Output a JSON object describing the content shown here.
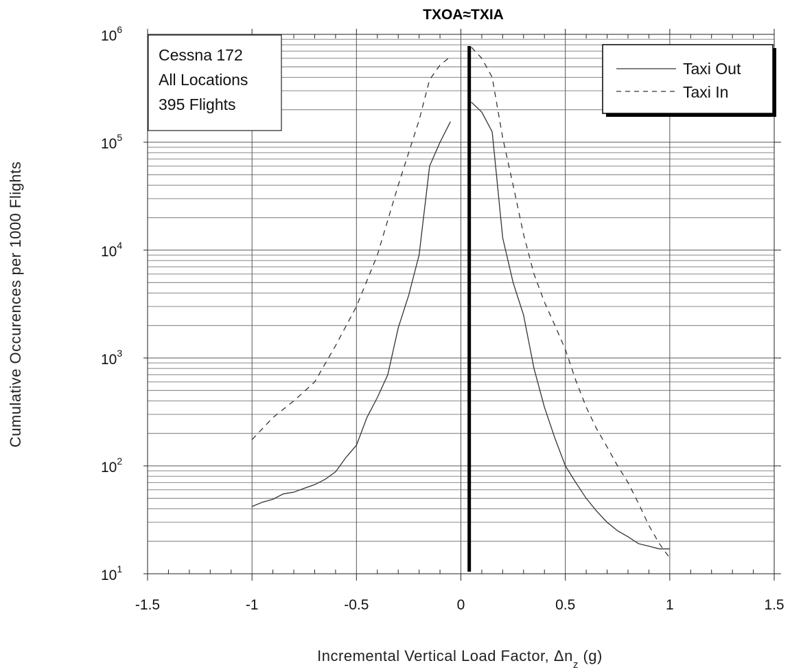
{
  "chart_data": {
    "type": "line",
    "title": "TXOA≈TXIA",
    "xlabel": "Incremental Vertical Load Factor, Δn",
    "xlabel_subscript": "z",
    "xlabel_suffix": " (g)",
    "ylabel": "Cumulative Occurences per 1000 Flights",
    "xlim": [
      -1.5,
      1.5
    ],
    "ylim": [
      10,
      1000000
    ],
    "yscale": "log",
    "grid": true,
    "x_ticks": [
      "-1.5",
      "-1",
      "-0.5",
      "0",
      "0.5",
      "1",
      "1.5"
    ],
    "x_tick_values": [
      -1.5,
      -1,
      -0.5,
      0,
      0.5,
      1,
      1.5
    ],
    "y_ticks": [
      {
        "base": "10",
        "exp": "1",
        "value": 10
      },
      {
        "base": "10",
        "exp": "2",
        "value": 100
      },
      {
        "base": "10",
        "exp": "3",
        "value": 1000
      },
      {
        "base": "10",
        "exp": "4",
        "value": 10000
      },
      {
        "base": "10",
        "exp": "5",
        "value": 100000
      },
      {
        "base": "10",
        "exp": "6",
        "value": 1000000
      }
    ],
    "info_box": [
      "Cessna 172",
      "All Locations",
      "395 Flights"
    ],
    "legend_position": "top-right",
    "reference_line_x": 0.04,
    "series": [
      {
        "name": "Taxi Out",
        "style": "solid",
        "x": [
          -1.0,
          -0.95,
          -0.9,
          -0.85,
          -0.8,
          -0.75,
          -0.7,
          -0.65,
          -0.6,
          -0.55,
          -0.5,
          -0.45,
          -0.4,
          -0.35,
          -0.3,
          -0.25,
          -0.2,
          -0.15,
          -0.1,
          -0.05
        ],
        "y": [
          42,
          46,
          49,
          55,
          57,
          62,
          67,
          75,
          88,
          120,
          155,
          280,
          430,
          700,
          1900,
          3800,
          9000,
          60000,
          100000,
          155000
        ]
      },
      {
        "name": "Taxi Out",
        "style": "solid",
        "x": [
          0.05,
          0.1,
          0.15,
          0.2,
          0.25,
          0.3,
          0.35,
          0.4,
          0.45,
          0.5,
          0.55,
          0.6,
          0.65,
          0.7,
          0.75,
          0.8,
          0.85,
          0.9,
          0.95,
          1.0
        ],
        "y": [
          235000,
          190000,
          125000,
          13000,
          5000,
          2500,
          800,
          350,
          180,
          100,
          70,
          50,
          38,
          30,
          25,
          22,
          19,
          18,
          17,
          17
        ]
      },
      {
        "name": "Taxi In",
        "style": "dashed",
        "x": [
          -1.0,
          -0.9,
          -0.8,
          -0.7,
          -0.6,
          -0.5,
          -0.4,
          -0.3,
          -0.2,
          -0.15,
          -0.1,
          -0.05
        ],
        "y": [
          175,
          280,
          400,
          600,
          1300,
          3000,
          9000,
          40000,
          160000,
          380000,
          520000,
          620000
        ]
      },
      {
        "name": "Taxi In",
        "style": "dashed",
        "x": [
          0.05,
          0.1,
          0.15,
          0.2,
          0.25,
          0.3,
          0.35,
          0.4,
          0.45,
          0.5,
          0.55,
          0.6,
          0.65,
          0.7,
          0.75,
          0.8,
          0.85,
          0.9,
          0.95,
          1.0
        ],
        "y": [
          760000,
          600000,
          400000,
          110000,
          40000,
          14000,
          6000,
          3300,
          2000,
          1200,
          620,
          350,
          220,
          150,
          100,
          70,
          45,
          28,
          19,
          14
        ]
      }
    ],
    "legend": [
      {
        "name": "Taxi Out",
        "style": "solid"
      },
      {
        "name": "Taxi In",
        "style": "dashed"
      }
    ]
  }
}
